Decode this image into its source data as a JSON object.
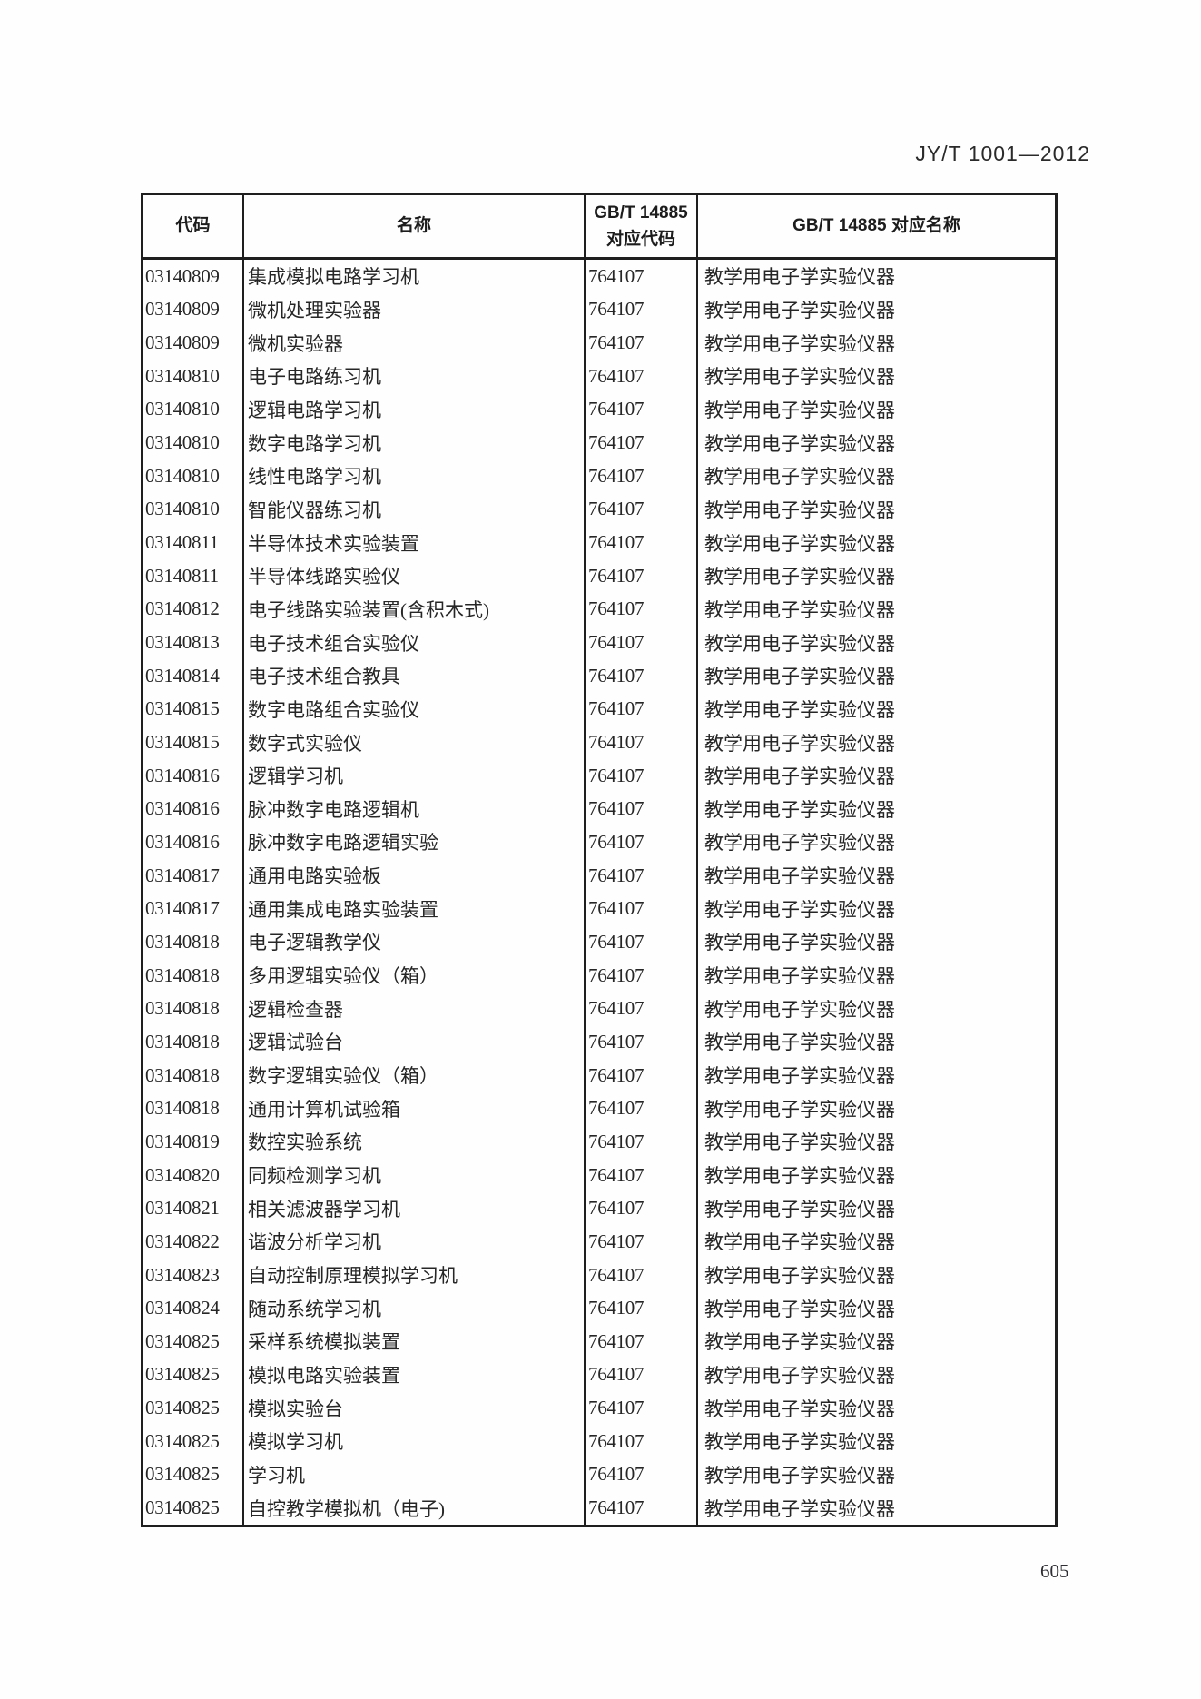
{
  "page": {
    "doc_ref": "JY/T 1001—2012",
    "page_number": "605"
  },
  "table": {
    "headers": {
      "code": "代码",
      "name": "名称",
      "gbt_code_line1": "GB/T 14885",
      "gbt_code_line2": "对应代码",
      "gbt_name": "GB/T 14885 对应名称"
    },
    "rows": [
      {
        "code": "03140809",
        "name": "集成模拟电路学习机",
        "gbt_code": "764107",
        "gbt_name": "教学用电子学实验仪器"
      },
      {
        "code": "03140809",
        "name": "微机处理实验器",
        "gbt_code": "764107",
        "gbt_name": "教学用电子学实验仪器"
      },
      {
        "code": "03140809",
        "name": "微机实验器",
        "gbt_code": "764107",
        "gbt_name": "教学用电子学实验仪器"
      },
      {
        "code": "03140810",
        "name": "电子电路练习机",
        "gbt_code": "764107",
        "gbt_name": "教学用电子学实验仪器"
      },
      {
        "code": "03140810",
        "name": "逻辑电路学习机",
        "gbt_code": "764107",
        "gbt_name": "教学用电子学实验仪器"
      },
      {
        "code": "03140810",
        "name": "数字电路学习机",
        "gbt_code": "764107",
        "gbt_name": "教学用电子学实验仪器"
      },
      {
        "code": "03140810",
        "name": "线性电路学习机",
        "gbt_code": "764107",
        "gbt_name": "教学用电子学实验仪器"
      },
      {
        "code": "03140810",
        "name": "智能仪器练习机",
        "gbt_code": "764107",
        "gbt_name": "教学用电子学实验仪器"
      },
      {
        "code": "03140811",
        "name": "半导体技术实验装置",
        "gbt_code": "764107",
        "gbt_name": "教学用电子学实验仪器"
      },
      {
        "code": "03140811",
        "name": "半导体线路实验仪",
        "gbt_code": "764107",
        "gbt_name": "教学用电子学实验仪器"
      },
      {
        "code": "03140812",
        "name": "电子线路实验装置(含积木式)",
        "gbt_code": "764107",
        "gbt_name": "教学用电子学实验仪器"
      },
      {
        "code": "03140813",
        "name": "电子技术组合实验仪",
        "gbt_code": "764107",
        "gbt_name": "教学用电子学实验仪器"
      },
      {
        "code": "03140814",
        "name": "电子技术组合教具",
        "gbt_code": "764107",
        "gbt_name": "教学用电子学实验仪器"
      },
      {
        "code": "03140815",
        "name": "数字电路组合实验仪",
        "gbt_code": "764107",
        "gbt_name": "教学用电子学实验仪器"
      },
      {
        "code": "03140815",
        "name": "数字式实验仪",
        "gbt_code": "764107",
        "gbt_name": "教学用电子学实验仪器"
      },
      {
        "code": "03140816",
        "name": "逻辑学习机",
        "gbt_code": "764107",
        "gbt_name": "教学用电子学实验仪器"
      },
      {
        "code": "03140816",
        "name": "脉冲数字电路逻辑机",
        "gbt_code": "764107",
        "gbt_name": "教学用电子学实验仪器"
      },
      {
        "code": "03140816",
        "name": "脉冲数字电路逻辑实验",
        "gbt_code": "764107",
        "gbt_name": "教学用电子学实验仪器"
      },
      {
        "code": "03140817",
        "name": "通用电路实验板",
        "gbt_code": "764107",
        "gbt_name": "教学用电子学实验仪器"
      },
      {
        "code": "03140817",
        "name": "通用集成电路实验装置",
        "gbt_code": "764107",
        "gbt_name": "教学用电子学实验仪器"
      },
      {
        "code": "03140818",
        "name": "电子逻辑教学仪",
        "gbt_code": "764107",
        "gbt_name": "教学用电子学实验仪器"
      },
      {
        "code": "03140818",
        "name": "多用逻辑实验仪（箱）",
        "gbt_code": "764107",
        "gbt_name": "教学用电子学实验仪器"
      },
      {
        "code": "03140818",
        "name": "逻辑检查器",
        "gbt_code": "764107",
        "gbt_name": "教学用电子学实验仪器"
      },
      {
        "code": "03140818",
        "name": "逻辑试验台",
        "gbt_code": "764107",
        "gbt_name": "教学用电子学实验仪器"
      },
      {
        "code": "03140818",
        "name": "数字逻辑实验仪（箱）",
        "gbt_code": "764107",
        "gbt_name": "教学用电子学实验仪器"
      },
      {
        "code": "03140818",
        "name": "通用计算机试验箱",
        "gbt_code": "764107",
        "gbt_name": "教学用电子学实验仪器"
      },
      {
        "code": "03140819",
        "name": "数控实验系统",
        "gbt_code": "764107",
        "gbt_name": "教学用电子学实验仪器"
      },
      {
        "code": "03140820",
        "name": "同频检测学习机",
        "gbt_code": "764107",
        "gbt_name": "教学用电子学实验仪器"
      },
      {
        "code": "03140821",
        "name": "相关滤波器学习机",
        "gbt_code": "764107",
        "gbt_name": "教学用电子学实验仪器"
      },
      {
        "code": "03140822",
        "name": "谐波分析学习机",
        "gbt_code": "764107",
        "gbt_name": "教学用电子学实验仪器"
      },
      {
        "code": "03140823",
        "name": "自动控制原理模拟学习机",
        "gbt_code": "764107",
        "gbt_name": "教学用电子学实验仪器"
      },
      {
        "code": "03140824",
        "name": "随动系统学习机",
        "gbt_code": "764107",
        "gbt_name": "教学用电子学实验仪器"
      },
      {
        "code": "03140825",
        "name": "采样系统模拟装置",
        "gbt_code": "764107",
        "gbt_name": "教学用电子学实验仪器"
      },
      {
        "code": "03140825",
        "name": "模拟电路实验装置",
        "gbt_code": "764107",
        "gbt_name": "教学用电子学实验仪器"
      },
      {
        "code": "03140825",
        "name": "模拟实验台",
        "gbt_code": "764107",
        "gbt_name": "教学用电子学实验仪器"
      },
      {
        "code": "03140825",
        "name": "模拟学习机",
        "gbt_code": "764107",
        "gbt_name": "教学用电子学实验仪器"
      },
      {
        "code": "03140825",
        "name": "学习机",
        "gbt_code": "764107",
        "gbt_name": "教学用电子学实验仪器"
      },
      {
        "code": "03140825",
        "name": "自控教学模拟机（电子)",
        "gbt_code": "764107",
        "gbt_name": "教学用电子学实验仪器"
      }
    ]
  }
}
